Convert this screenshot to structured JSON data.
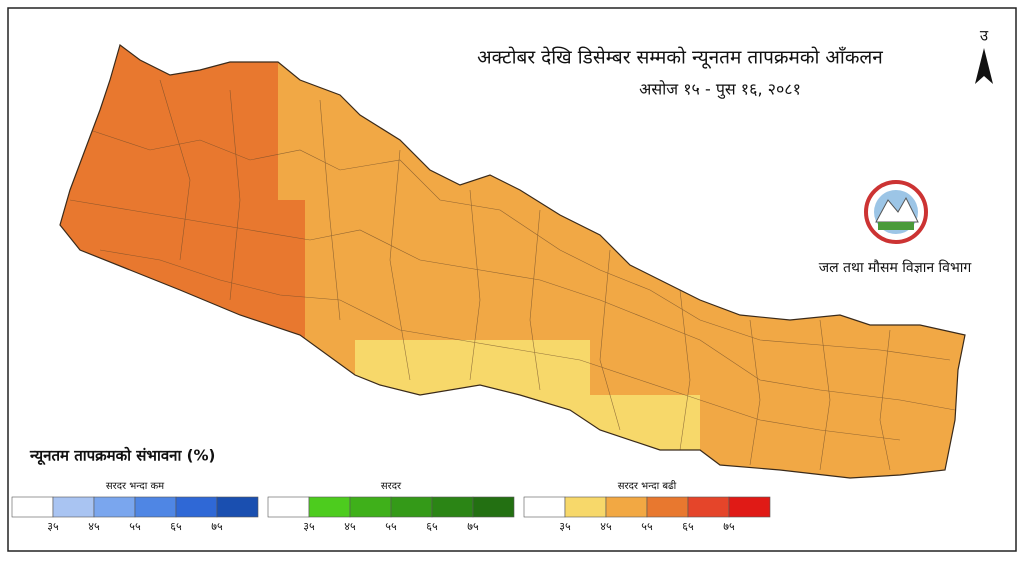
{
  "header": {
    "title": "अक्टोबर  देखि डिसेम्बर सम्मको न्यूनतम  तापक्रमको आँकलन",
    "subtitle": "असोज १५ - पुस १६, २०८१"
  },
  "north": "उ",
  "agency": "जल तथा मौसम विज्ञान विभाग",
  "legend": {
    "title": "न्यूनतम तापक्रमको संभावना (%)",
    "groups": [
      {
        "label": "सरदर भन्दा कम",
        "colors": [
          "#ffffff",
          "#a9c4f2",
          "#7aa6ee",
          "#4f86e4",
          "#2f68d6",
          "#1a4fb0"
        ],
        "ticks": [
          "३५",
          "४५",
          "५५",
          "६५",
          "७५"
        ]
      },
      {
        "label": "सरदर",
        "colors": [
          "#ffffff",
          "#4dcc1e",
          "#3fb01a",
          "#349a18",
          "#2b8515",
          "#237012"
        ],
        "ticks": [
          "३५",
          "४५",
          "५५",
          "६५",
          "७५"
        ]
      },
      {
        "label": "सरदर भन्दा बढी",
        "colors": [
          "#ffffff",
          "#f7d86a",
          "#f2a843",
          "#e8782f",
          "#e5452a",
          "#e01a16"
        ],
        "ticks": [
          "३५",
          "४५",
          "५५",
          "६५",
          "७५"
        ]
      }
    ]
  }
}
